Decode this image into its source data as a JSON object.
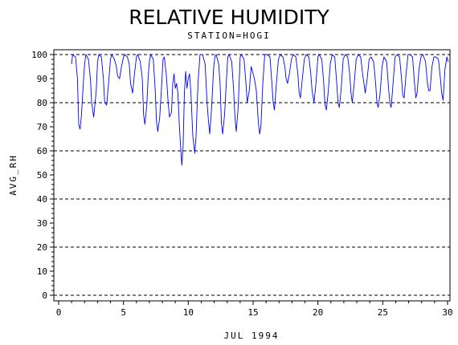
{
  "chart_data": {
    "type": "line",
    "title": "RELATIVE HUMIDITY",
    "subtitle": "STATION=HOGI",
    "xlabel": "JUL 1994",
    "ylabel": "AVG_RH",
    "xlim": [
      0,
      30
    ],
    "ylim": [
      0,
      100
    ],
    "xticks": [
      "0",
      "5",
      "10",
      "15",
      "20",
      "25",
      "30"
    ],
    "yticks": [
      "0",
      "10",
      "20",
      "30",
      "40",
      "50",
      "60",
      "70",
      "80",
      "90",
      "100"
    ],
    "grid_lines_y": [
      0,
      20,
      40,
      60,
      80,
      100
    ],
    "line_color": "#0000ff",
    "series": [
      {
        "values": [
          [
            1.0,
            96
          ],
          [
            1.08,
            100
          ],
          [
            1.3,
            99
          ],
          [
            1.45,
            90
          ],
          [
            1.55,
            71
          ],
          [
            1.65,
            69
          ],
          [
            1.75,
            74
          ],
          [
            1.9,
            88
          ],
          [
            2.0,
            96
          ],
          [
            2.1,
            100
          ],
          [
            2.3,
            98
          ],
          [
            2.45,
            90
          ],
          [
            2.55,
            80
          ],
          [
            2.7,
            74
          ],
          [
            2.9,
            85
          ],
          [
            3.0,
            97
          ],
          [
            3.1,
            100
          ],
          [
            3.3,
            99
          ],
          [
            3.45,
            90
          ],
          [
            3.55,
            80
          ],
          [
            3.7,
            79
          ],
          [
            3.85,
            88
          ],
          [
            4.0,
            98
          ],
          [
            4.1,
            100
          ],
          [
            4.3,
            98
          ],
          [
            4.45,
            95
          ],
          [
            4.55,
            91
          ],
          [
            4.7,
            90
          ],
          [
            4.85,
            95
          ],
          [
            5.0,
            99
          ],
          [
            5.1,
            100
          ],
          [
            5.3,
            99
          ],
          [
            5.45,
            96
          ],
          [
            5.55,
            88
          ],
          [
            5.7,
            84
          ],
          [
            5.85,
            92
          ],
          [
            6.0,
            99
          ],
          [
            6.1,
            100
          ],
          [
            6.3,
            97
          ],
          [
            6.45,
            90
          ],
          [
            6.55,
            75
          ],
          [
            6.65,
            71
          ],
          [
            6.8,
            79
          ],
          [
            6.9,
            90
          ],
          [
            7.0,
            97
          ],
          [
            7.1,
            100
          ],
          [
            7.3,
            98
          ],
          [
            7.45,
            85
          ],
          [
            7.55,
            72
          ],
          [
            7.65,
            68
          ],
          [
            7.8,
            74
          ],
          [
            7.95,
            88
          ],
          [
            8.05,
            98
          ],
          [
            8.15,
            99
          ],
          [
            8.3,
            92
          ],
          [
            8.45,
            80
          ],
          [
            8.55,
            74
          ],
          [
            8.7,
            76
          ],
          [
            8.8,
            88
          ],
          [
            8.9,
            92
          ],
          [
            9.0,
            86
          ],
          [
            9.1,
            88
          ],
          [
            9.2,
            84
          ],
          [
            9.3,
            72
          ],
          [
            9.4,
            62
          ],
          [
            9.5,
            54
          ],
          [
            9.6,
            62
          ],
          [
            9.7,
            84
          ],
          [
            9.8,
            93
          ],
          [
            9.9,
            86
          ],
          [
            10.0,
            90
          ],
          [
            10.1,
            92
          ],
          [
            10.2,
            84
          ],
          [
            10.35,
            66
          ],
          [
            10.5,
            59
          ],
          [
            10.6,
            66
          ],
          [
            10.75,
            88
          ],
          [
            10.9,
            100
          ],
          [
            11.1,
            100
          ],
          [
            11.3,
            96
          ],
          [
            11.45,
            80
          ],
          [
            11.55,
            73
          ],
          [
            11.65,
            67
          ],
          [
            11.8,
            78
          ],
          [
            11.95,
            94
          ],
          [
            12.05,
            99
          ],
          [
            12.15,
            100
          ],
          [
            12.35,
            96
          ],
          [
            12.45,
            88
          ],
          [
            12.55,
            72
          ],
          [
            12.65,
            67
          ],
          [
            12.8,
            75
          ],
          [
            12.95,
            90
          ],
          [
            13.05,
            99
          ],
          [
            13.15,
            100
          ],
          [
            13.35,
            97
          ],
          [
            13.5,
            85
          ],
          [
            13.6,
            74
          ],
          [
            13.7,
            68
          ],
          [
            13.85,
            78
          ],
          [
            14.0,
            99
          ],
          [
            14.1,
            100
          ],
          [
            14.3,
            98
          ],
          [
            14.45,
            88
          ],
          [
            14.55,
            80
          ],
          [
            14.7,
            85
          ],
          [
            14.85,
            95
          ],
          [
            15.0,
            92
          ],
          [
            15.1,
            90
          ],
          [
            15.25,
            85
          ],
          [
            15.4,
            72
          ],
          [
            15.5,
            67
          ],
          [
            15.6,
            70
          ],
          [
            15.75,
            88
          ],
          [
            15.9,
            100
          ],
          [
            16.1,
            100
          ],
          [
            16.3,
            99
          ],
          [
            16.45,
            88
          ],
          [
            16.55,
            80
          ],
          [
            16.65,
            77
          ],
          [
            16.8,
            88
          ],
          [
            16.95,
            98
          ],
          [
            17.1,
            100
          ],
          [
            17.3,
            99
          ],
          [
            17.45,
            95
          ],
          [
            17.55,
            90
          ],
          [
            17.65,
            88
          ],
          [
            17.8,
            92
          ],
          [
            17.95,
            98
          ],
          [
            18.1,
            100
          ],
          [
            18.3,
            99
          ],
          [
            18.45,
            92
          ],
          [
            18.55,
            84
          ],
          [
            18.65,
            82
          ],
          [
            18.8,
            90
          ],
          [
            18.95,
            98
          ],
          [
            19.1,
            100
          ],
          [
            19.3,
            99
          ],
          [
            19.45,
            92
          ],
          [
            19.55,
            85
          ],
          [
            19.7,
            80
          ],
          [
            19.85,
            88
          ],
          [
            20.0,
            99
          ],
          [
            20.1,
            100
          ],
          [
            20.3,
            98
          ],
          [
            20.45,
            88
          ],
          [
            20.55,
            79
          ],
          [
            20.65,
            77
          ],
          [
            20.8,
            85
          ],
          [
            20.95,
            96
          ],
          [
            21.1,
            100
          ],
          [
            21.3,
            99
          ],
          [
            21.45,
            88
          ],
          [
            21.55,
            80
          ],
          [
            21.65,
            78
          ],
          [
            21.8,
            86
          ],
          [
            21.95,
            98
          ],
          [
            22.1,
            100
          ],
          [
            22.3,
            99
          ],
          [
            22.45,
            92
          ],
          [
            22.55,
            84
          ],
          [
            22.65,
            80
          ],
          [
            22.8,
            88
          ],
          [
            22.95,
            98
          ],
          [
            23.1,
            100
          ],
          [
            23.3,
            99
          ],
          [
            23.45,
            92
          ],
          [
            23.55,
            88
          ],
          [
            23.65,
            84
          ],
          [
            23.8,
            90
          ],
          [
            23.95,
            98
          ],
          [
            24.1,
            99
          ],
          [
            24.3,
            97
          ],
          [
            24.45,
            88
          ],
          [
            24.55,
            80
          ],
          [
            24.65,
            78
          ],
          [
            24.8,
            84
          ],
          [
            24.95,
            95
          ],
          [
            25.1,
            99
          ],
          [
            25.3,
            97
          ],
          [
            25.45,
            86
          ],
          [
            25.55,
            80
          ],
          [
            25.65,
            78
          ],
          [
            25.8,
            88
          ],
          [
            25.95,
            99
          ],
          [
            26.1,
            100
          ],
          [
            26.3,
            99
          ],
          [
            26.45,
            90
          ],
          [
            26.55,
            83
          ],
          [
            26.65,
            82
          ],
          [
            26.8,
            92
          ],
          [
            26.95,
            100
          ],
          [
            27.1,
            100
          ],
          [
            27.3,
            99
          ],
          [
            27.45,
            88
          ],
          [
            27.55,
            82
          ],
          [
            27.65,
            84
          ],
          [
            27.8,
            94
          ],
          [
            27.95,
            99
          ],
          [
            28.1,
            100
          ],
          [
            28.3,
            97
          ],
          [
            28.45,
            88
          ],
          [
            28.55,
            85
          ],
          [
            28.65,
            85
          ],
          [
            28.8,
            95
          ],
          [
            28.95,
            99
          ],
          [
            29.1,
            99
          ],
          [
            29.3,
            98
          ],
          [
            29.45,
            90
          ],
          [
            29.55,
            84
          ],
          [
            29.65,
            81
          ],
          [
            29.8,
            94
          ],
          [
            29.95,
            99
          ],
          [
            30.05,
            97
          ]
        ]
      }
    ]
  }
}
